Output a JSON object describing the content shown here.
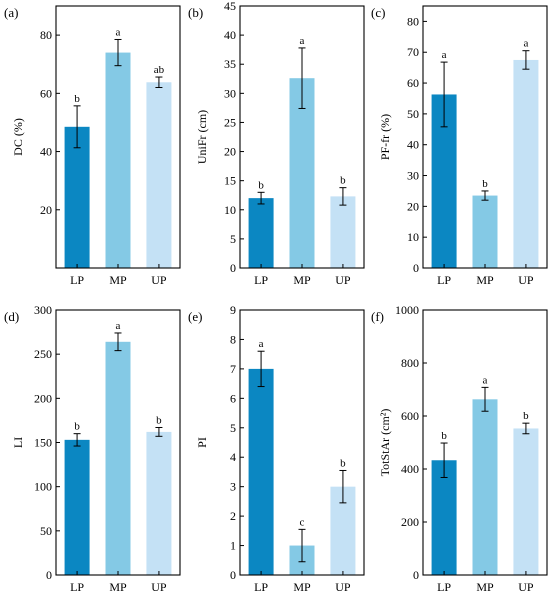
{
  "colors": {
    "LP": "#0b87c2",
    "MP": "#84c9e5",
    "UP": "#c4e1f5",
    "axis": "#000000"
  },
  "chart_data": [
    {
      "panel": "(a)",
      "type": "bar",
      "ylabel": "DC (%)",
      "ylim": [
        0,
        90
      ],
      "yticks": [
        20,
        40,
        60,
        80
      ],
      "categories": [
        "LP",
        "MP",
        "UP"
      ],
      "values": [
        48.5,
        74,
        63.8
      ],
      "errors": [
        7.2,
        4.5,
        1.8
      ],
      "letters": [
        "b",
        "a",
        "ab"
      ]
    },
    {
      "panel": "(b)",
      "type": "bar",
      "ylabel": "UniFr (cm)",
      "ylim": [
        0,
        45
      ],
      "yticks": [
        0,
        5,
        10,
        15,
        20,
        25,
        30,
        35,
        40,
        45
      ],
      "categories": [
        "LP",
        "MP",
        "UP"
      ],
      "values": [
        12,
        32.6,
        12.3
      ],
      "errors": [
        1,
        5.2,
        1.5
      ],
      "letters": [
        "b",
        "a",
        "b"
      ]
    },
    {
      "panel": "(c)",
      "type": "bar",
      "ylabel": "PF-fr (%)",
      "ylim": [
        0,
        85
      ],
      "yticks": [
        0,
        10,
        20,
        30,
        40,
        50,
        60,
        70,
        80
      ],
      "categories": [
        "LP",
        "MP",
        "UP"
      ],
      "values": [
        56.3,
        23.5,
        67.5
      ],
      "errors": [
        10.5,
        1.5,
        3
      ],
      "letters": [
        "a",
        "b",
        "a"
      ]
    },
    {
      "panel": "(d)",
      "type": "bar",
      "ylabel": "LI",
      "ylim": [
        0,
        300
      ],
      "yticks": [
        0,
        50,
        100,
        150,
        200,
        250,
        300
      ],
      "categories": [
        "LP",
        "MP",
        "UP"
      ],
      "values": [
        153,
        264,
        162
      ],
      "errors": [
        7,
        10,
        5
      ],
      "letters": [
        "b",
        "a",
        "b"
      ]
    },
    {
      "panel": "(e)",
      "type": "bar",
      "ylabel": "PI",
      "ylim": [
        0,
        9
      ],
      "yticks": [
        0,
        1,
        2,
        3,
        4,
        5,
        6,
        7,
        8,
        9
      ],
      "categories": [
        "LP",
        "MP",
        "UP"
      ],
      "values": [
        7,
        1,
        3
      ],
      "errors": [
        0.6,
        0.55,
        0.55
      ],
      "letters": [
        "a",
        "c",
        "b"
      ]
    },
    {
      "panel": "(f)",
      "type": "bar",
      "ylabel": "TotStAr (cm²)",
      "ylim": [
        0,
        1000
      ],
      "yticks": [
        0,
        200,
        400,
        600,
        800,
        1000
      ],
      "categories": [
        "LP",
        "MP",
        "UP"
      ],
      "values": [
        433,
        663,
        553
      ],
      "errors": [
        65,
        45,
        20
      ],
      "letters": [
        "b",
        "a",
        "b"
      ]
    }
  ]
}
